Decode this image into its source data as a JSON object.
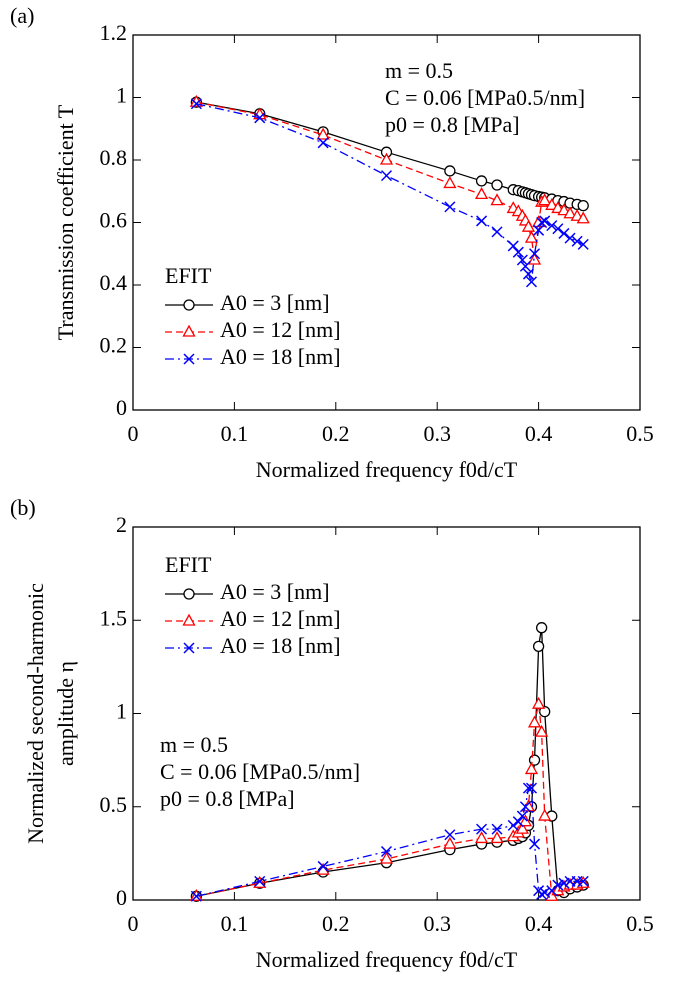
{
  "chart_data": [
    {
      "type": "line",
      "panel_label": "(a)",
      "xlabel": "Normalized frequency f0d/cT",
      "ylabel": [
        "Transmission coefficient T"
      ],
      "xlim": [
        0,
        0.5
      ],
      "xticks": [
        0,
        0.1,
        0.2,
        0.3,
        0.4,
        0.5
      ],
      "ylim": [
        0,
        1.2
      ],
      "yticks": [
        0,
        0.2,
        0.4,
        0.6,
        0.8,
        1,
        1.2
      ],
      "annotations": [
        "m = 0.5",
        "C = 0.06 [MPa0.5/nm]",
        "p0 = 0.8 [MPa]"
      ],
      "legend_title": "EFIT",
      "legend": "lower left",
      "x": [
        0.0625,
        0.125,
        0.1875,
        0.25,
        0.3125,
        0.34375,
        0.359,
        0.375,
        0.38,
        0.384,
        0.387,
        0.39,
        0.393,
        0.396,
        0.4,
        0.403,
        0.406,
        0.413,
        0.419,
        0.425,
        0.431,
        0.438,
        0.444
      ],
      "series": [
        {
          "name": "A0 = 3 [nm]",
          "color": "#000000",
          "marker": "circle",
          "linestyle": "solid",
          "values": [
            0.985,
            0.948,
            0.89,
            0.825,
            0.765,
            0.733,
            0.72,
            0.705,
            0.702,
            0.698,
            0.695,
            0.692,
            0.689,
            0.686,
            0.683,
            0.681,
            0.679,
            0.675,
            0.67,
            0.667,
            0.662,
            0.658,
            0.654
          ]
        },
        {
          "name": "A0 = 12 [nm]",
          "color": "#ff0000",
          "marker": "triangle",
          "linestyle": "dashed",
          "values": [
            0.985,
            0.945,
            0.88,
            0.8,
            0.725,
            0.69,
            0.67,
            0.645,
            0.635,
            0.62,
            0.605,
            0.585,
            0.55,
            0.48,
            0.6,
            0.665,
            0.67,
            0.655,
            0.645,
            0.638,
            0.628,
            0.62,
            0.612
          ]
        },
        {
          "name": "A0 = 18 [nm]",
          "color": "#0000ff",
          "marker": "cross",
          "linestyle": "dashdot",
          "values": [
            0.98,
            0.935,
            0.855,
            0.75,
            0.65,
            0.605,
            0.57,
            0.525,
            0.505,
            0.48,
            0.46,
            0.435,
            0.41,
            0.5,
            0.575,
            0.6,
            0.605,
            0.59,
            0.58,
            0.565,
            0.55,
            0.54,
            0.53
          ]
        }
      ]
    },
    {
      "type": "line",
      "panel_label": "(b)",
      "xlabel": "Normalized frequency f0d/cT",
      "ylabel": [
        "Normalized second-harmonic",
        "amplitude η"
      ],
      "xlim": [
        0,
        0.5
      ],
      "xticks": [
        0,
        0.1,
        0.2,
        0.3,
        0.4,
        0.5
      ],
      "ylim": [
        0,
        2
      ],
      "yticks": [
        0,
        0.5,
        1,
        1.5,
        2
      ],
      "annotations": [
        "m = 0.5",
        "C = 0.06 [MPa0.5/nm]",
        "p0 = 0.8 [MPa]"
      ],
      "legend_title": "EFIT",
      "legend": "upper left",
      "x": [
        0.0625,
        0.125,
        0.1875,
        0.25,
        0.3125,
        0.34375,
        0.359,
        0.375,
        0.38,
        0.384,
        0.387,
        0.39,
        0.393,
        0.396,
        0.4,
        0.403,
        0.406,
        0.413,
        0.419,
        0.425,
        0.431,
        0.438,
        0.444
      ],
      "series": [
        {
          "name": "A0 = 3 [nm]",
          "color": "#000000",
          "marker": "circle",
          "linestyle": "solid",
          "values": [
            0.02,
            0.09,
            0.15,
            0.2,
            0.27,
            0.3,
            0.31,
            0.32,
            0.33,
            0.34,
            0.36,
            0.4,
            0.5,
            0.75,
            1.36,
            1.46,
            1.01,
            0.45,
            0.05,
            0.04,
            0.06,
            0.07,
            0.08
          ]
        },
        {
          "name": "A0 = 12 [nm]",
          "color": "#ff0000",
          "marker": "triangle",
          "linestyle": "dashed",
          "values": [
            0.02,
            0.09,
            0.16,
            0.22,
            0.3,
            0.33,
            0.33,
            0.34,
            0.36,
            0.38,
            0.42,
            0.5,
            0.7,
            0.95,
            1.05,
            0.9,
            0.45,
            0.02,
            0.05,
            0.07,
            0.08,
            0.08,
            0.09
          ]
        },
        {
          "name": "A0 = 18 [nm]",
          "color": "#0000ff",
          "marker": "cross",
          "linestyle": "dashdot",
          "values": [
            0.02,
            0.1,
            0.18,
            0.26,
            0.35,
            0.38,
            0.38,
            0.4,
            0.42,
            0.45,
            0.5,
            0.6,
            0.6,
            0.3,
            0.05,
            0.03,
            0.04,
            0.05,
            0.08,
            0.09,
            0.1,
            0.1,
            0.1
          ]
        }
      ]
    }
  ]
}
